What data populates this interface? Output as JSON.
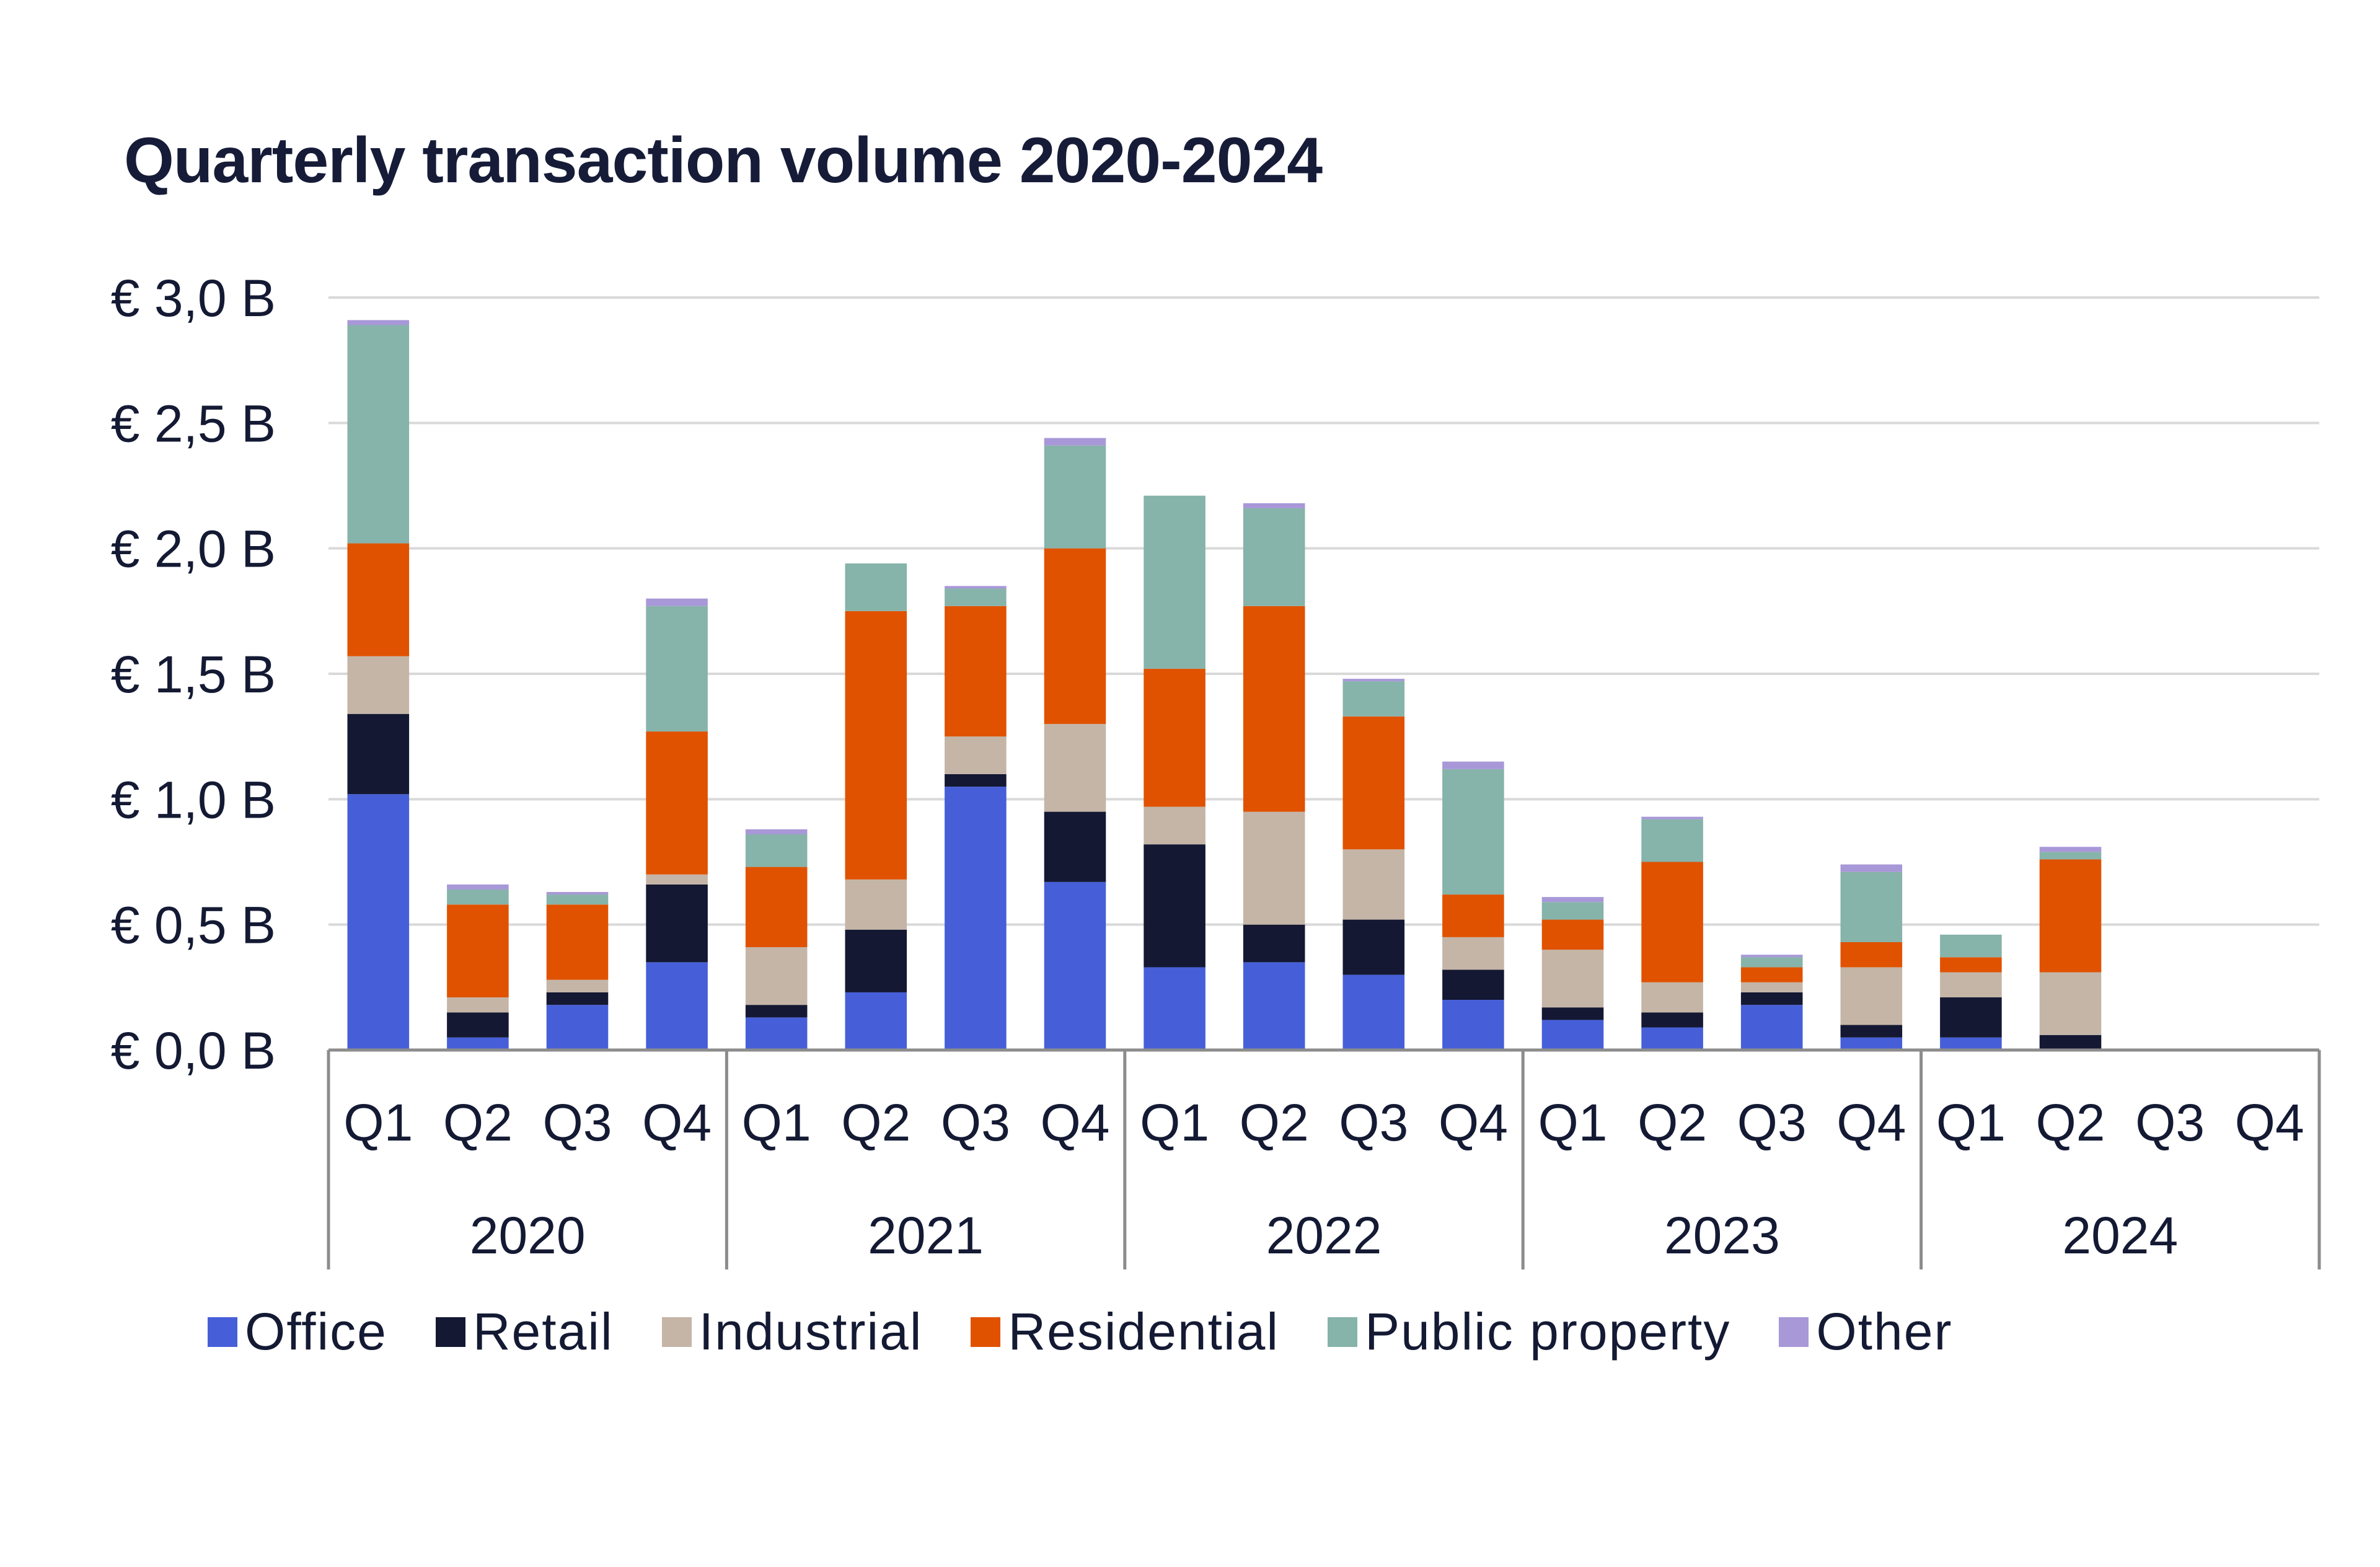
{
  "chart_data": {
    "type": "bar",
    "stacked": true,
    "title": "Quarterly transaction volume 2020-2024",
    "xlabel": "",
    "ylabel": "",
    "ylim": [
      0,
      3.0
    ],
    "yticks": [
      0,
      0.5,
      1.0,
      1.5,
      2.0,
      2.5,
      3.0
    ],
    "ytick_labels": [
      "€ 0,0 B",
      "€ 0,5 B",
      "€ 1,0 B",
      "€ 1,5 B",
      "€ 2,0 B",
      "€ 2,5 B",
      "€ 3,0 B"
    ],
    "grid": true,
    "legend_position": "bottom",
    "groups": [
      {
        "label": "2020",
        "quarters": [
          "Q1",
          "Q2",
          "Q3",
          "Q4"
        ]
      },
      {
        "label": "2021",
        "quarters": [
          "Q1",
          "Q2",
          "Q3",
          "Q4"
        ]
      },
      {
        "label": "2022",
        "quarters": [
          "Q1",
          "Q2",
          "Q3",
          "Q4"
        ]
      },
      {
        "label": "2023",
        "quarters": [
          "Q1",
          "Q2",
          "Q3",
          "Q4"
        ]
      },
      {
        "label": "2024",
        "quarters": [
          "Q1",
          "Q2",
          "Q3",
          "Q4"
        ]
      }
    ],
    "categories": [
      "2020 Q1",
      "2020 Q2",
      "2020 Q3",
      "2020 Q4",
      "2021 Q1",
      "2021 Q2",
      "2021 Q3",
      "2021 Q4",
      "2022 Q1",
      "2022 Q2",
      "2022 Q3",
      "2022 Q4",
      "2023 Q1",
      "2023 Q2",
      "2023 Q3",
      "2023 Q4",
      "2024 Q1",
      "2024 Q2",
      "2024 Q3",
      "2024 Q4"
    ],
    "series": [
      {
        "name": "Office",
        "color": "#465fd8",
        "values": [
          1.02,
          0.05,
          0.18,
          0.35,
          0.13,
          0.23,
          1.05,
          0.67,
          0.33,
          0.35,
          0.3,
          0.2,
          0.12,
          0.09,
          0.18,
          0.05,
          0.05,
          0.0,
          0,
          0
        ]
      },
      {
        "name": "Retail",
        "color": "#141833",
        "values": [
          0.32,
          0.1,
          0.05,
          0.31,
          0.05,
          0.25,
          0.05,
          0.28,
          0.49,
          0.15,
          0.22,
          0.12,
          0.05,
          0.06,
          0.05,
          0.05,
          0.16,
          0.06,
          0,
          0
        ]
      },
      {
        "name": "Industrial",
        "color": "#c4b5a7",
        "values": [
          0.23,
          0.06,
          0.05,
          0.04,
          0.23,
          0.2,
          0.15,
          0.35,
          0.15,
          0.45,
          0.28,
          0.13,
          0.23,
          0.12,
          0.04,
          0.23,
          0.1,
          0.25,
          0,
          0
        ]
      },
      {
        "name": "Residential",
        "color": "#e05200",
        "values": [
          0.45,
          0.37,
          0.3,
          0.57,
          0.32,
          1.07,
          0.52,
          0.7,
          0.55,
          0.82,
          0.53,
          0.17,
          0.12,
          0.48,
          0.06,
          0.1,
          0.06,
          0.45,
          0,
          0
        ]
      },
      {
        "name": "Public property",
        "color": "#86b3aa",
        "values": [
          0.87,
          0.06,
          0.04,
          0.5,
          0.13,
          0.19,
          0.07,
          0.41,
          0.69,
          0.39,
          0.14,
          0.5,
          0.07,
          0.17,
          0.04,
          0.28,
          0.09,
          0.03,
          0,
          0
        ]
      },
      {
        "name": "Other",
        "color": "#a898d8",
        "values": [
          0.02,
          0.02,
          0.01,
          0.03,
          0.02,
          0.0,
          0.01,
          0.03,
          0.0,
          0.02,
          0.01,
          0.03,
          0.02,
          0.01,
          0.01,
          0.03,
          0.0,
          0.02,
          0,
          0
        ]
      }
    ]
  }
}
